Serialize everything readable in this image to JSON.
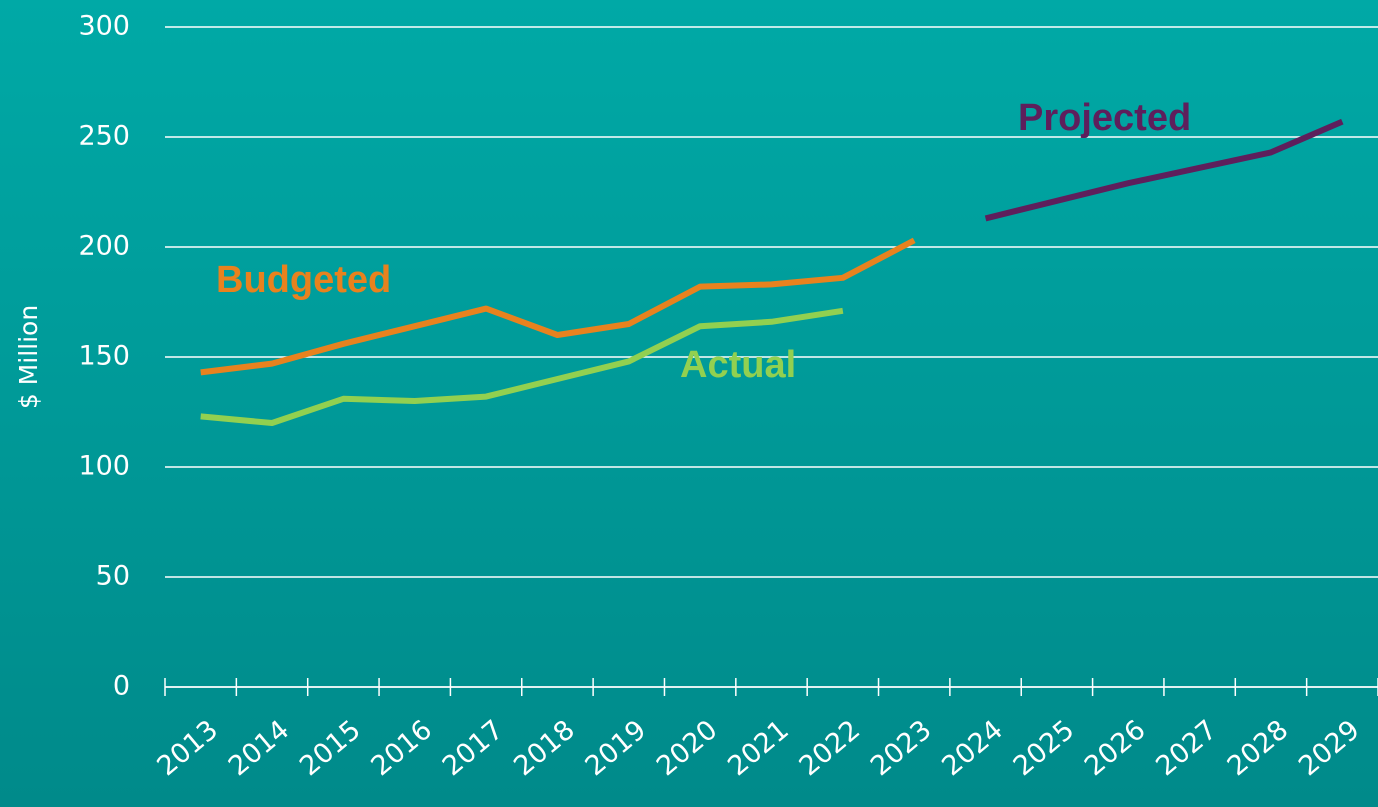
{
  "chart_data": {
    "type": "line",
    "y_label": "$ Million",
    "categories": [
      "2013",
      "2014",
      "2015",
      "2016",
      "2017",
      "2018",
      "2019",
      "2020",
      "2021",
      "2022",
      "2023",
      "2024",
      "2025",
      "2026",
      "2027",
      "2028",
      "2029"
    ],
    "series": [
      {
        "name": "Budgeted",
        "color": "#e8821e",
        "values": [
          143,
          147,
          156,
          164,
          172,
          160,
          165,
          182,
          183,
          186,
          203,
          null,
          null,
          null,
          null,
          null,
          null
        ]
      },
      {
        "name": "Actual",
        "color": "#92d050",
        "values": [
          123,
          120,
          131,
          130,
          132,
          140,
          148,
          164,
          166,
          171,
          null,
          null,
          null,
          null,
          null,
          null,
          null
        ]
      },
      {
        "name": "Projected",
        "color": "#5e1f5c",
        "values": [
          null,
          null,
          null,
          null,
          null,
          null,
          null,
          null,
          null,
          null,
          null,
          213,
          221,
          229,
          236,
          243,
          257
        ]
      }
    ],
    "ylim": [
      0,
      300
    ],
    "yticks": [
      0,
      50,
      100,
      150,
      200,
      250,
      300
    ],
    "grid": true
  }
}
